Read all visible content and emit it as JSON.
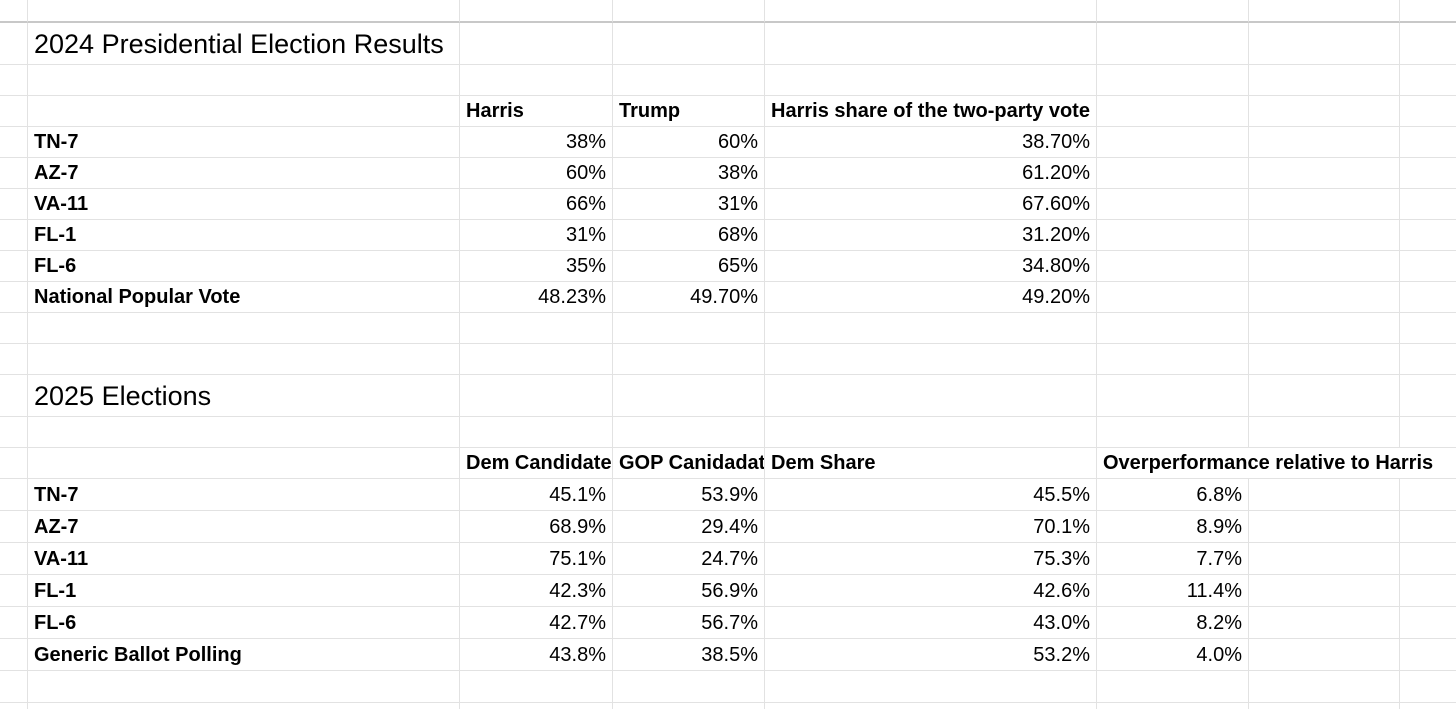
{
  "sheet": {
    "background": "#ffffff",
    "grid_color": "#e2e2e2",
    "frozen_divider_color": "#c8c8c8",
    "text_color": "#000000"
  },
  "table_2024": {
    "title": "2024 Presidential Election Results",
    "headers": {
      "col_c": "Harris",
      "col_d": "Trump",
      "col_e": "Harris share of the two-party vote"
    },
    "rows": [
      {
        "label": "TN-7",
        "harris": "38%",
        "trump": "60%",
        "share": "38.70%"
      },
      {
        "label": "AZ-7",
        "harris": "60%",
        "trump": "38%",
        "share": "61.20%"
      },
      {
        "label": "VA-11",
        "harris": "66%",
        "trump": "31%",
        "share": "67.60%"
      },
      {
        "label": "FL-1",
        "harris": "31%",
        "trump": "68%",
        "share": "31.20%"
      },
      {
        "label": "FL-6",
        "harris": "35%",
        "trump": "65%",
        "share": "34.80%"
      },
      {
        "label": "National Popular Vote",
        "harris": "48.23%",
        "trump": "49.70%",
        "share": "49.20%"
      }
    ]
  },
  "table_2025": {
    "title": "2025 Elections",
    "headers": {
      "col_c": "Dem Candidate",
      "col_d": "GOP Canidadat",
      "col_e": "Dem Share",
      "col_f": "Overperformance relative to Harris"
    },
    "rows": [
      {
        "label": "TN-7",
        "dem": "45.1%",
        "gop": "53.9%",
        "dem_share": "45.5%",
        "overperformance": "6.8%"
      },
      {
        "label": "AZ-7",
        "dem": "68.9%",
        "gop": "29.4%",
        "dem_share": "70.1%",
        "overperformance": "8.9%"
      },
      {
        "label": "VA-11",
        "dem": "75.1%",
        "gop": "24.7%",
        "dem_share": "75.3%",
        "overperformance": "7.7%"
      },
      {
        "label": "FL-1",
        "dem": "42.3%",
        "gop": "56.9%",
        "dem_share": "42.6%",
        "overperformance": "11.4%"
      },
      {
        "label": "FL-6",
        "dem": "42.7%",
        "gop": "56.7%",
        "dem_share": "43.0%",
        "overperformance": "8.2%"
      },
      {
        "label": "Generic Ballot Polling",
        "dem": "43.8%",
        "gop": "38.5%",
        "dem_share": "53.2%",
        "overperformance": "4.0%"
      }
    ]
  }
}
